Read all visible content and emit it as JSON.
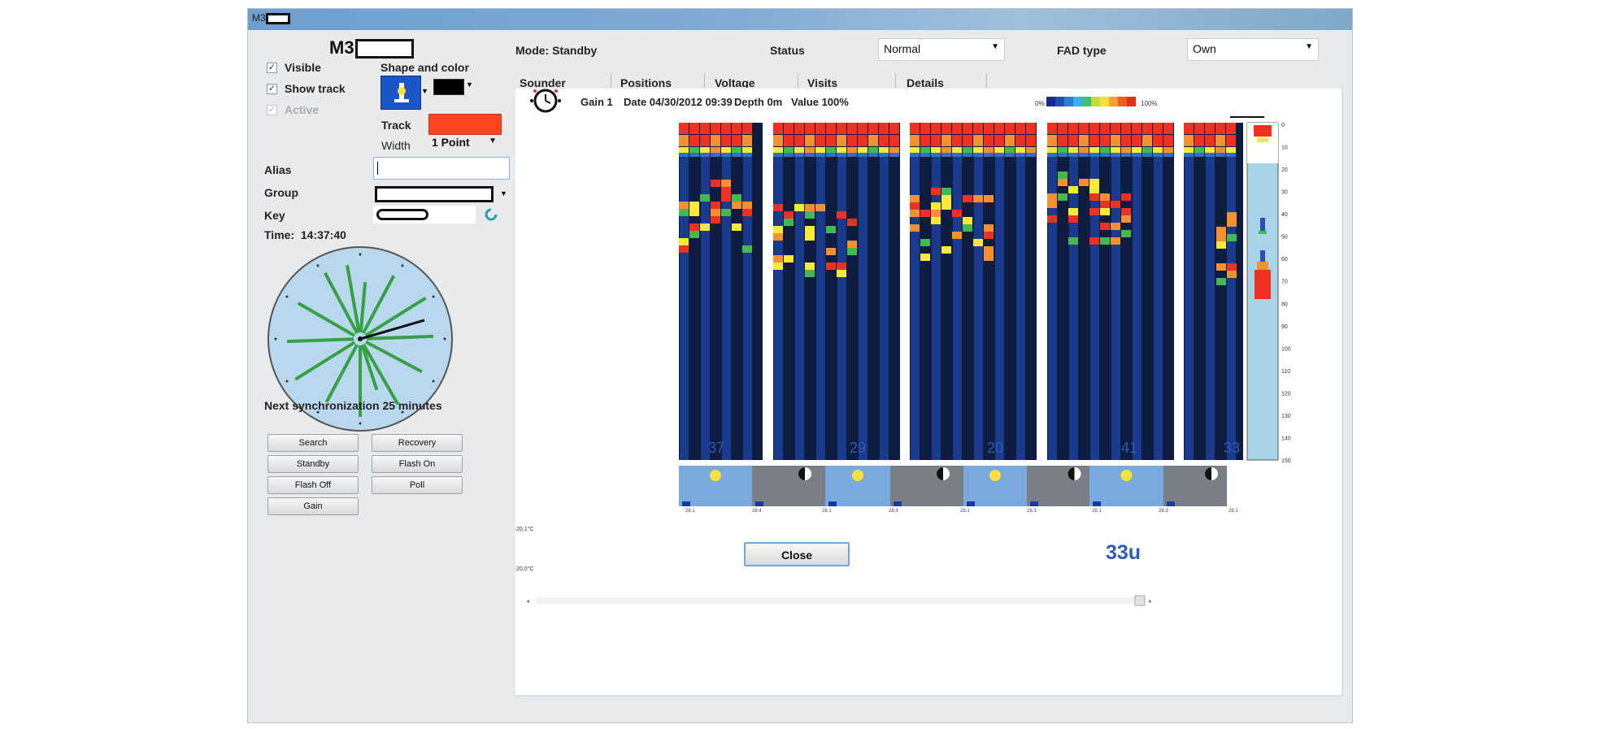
{
  "window": {
    "title_prefix": "M3"
  },
  "device": {
    "name_prefix": "M3"
  },
  "options": {
    "visible_label": "Visible",
    "visible_checked": true,
    "show_track_label": "Show track",
    "show_track_checked": true,
    "active_label": "Active",
    "active_checked": true
  },
  "shape": {
    "title": "Shape and color",
    "icon_bg": "#1a56c8",
    "color_swatch": "#000000"
  },
  "track": {
    "label": "Track",
    "color": "#ff4422",
    "width_label": "Width",
    "width_value": "1 Point"
  },
  "fields": {
    "alias_label": "Alias",
    "alias_value": "",
    "group_label": "Group",
    "key_label": "Key"
  },
  "time": {
    "label": "Time:",
    "value": "14:37:40"
  },
  "sync_text": "Next synchronization 25 minutes",
  "buttons": {
    "search": "Search",
    "recovery": "Recovery",
    "standby": "Standby",
    "flash_on": "Flash On",
    "flash_off": "Flash Off",
    "poll": "Poll",
    "gain": "Gain",
    "close": "Close"
  },
  "header": {
    "mode_label": "Mode:",
    "mode_value": "Standby",
    "status_label": "Status",
    "status_value": "Normal",
    "fad_label": "FAD type",
    "fad_value": "Own"
  },
  "tabs": [
    "Sounder",
    "Positions",
    "Voltage",
    "Visits",
    "Details"
  ],
  "sounder": {
    "gain": "Gain 1",
    "date": "Date 04/30/2012 09:39",
    "depth": "Depth 0m",
    "value": "Value 100%",
    "scale_min": "0%",
    "scale_max": "100%",
    "scale_colors": [
      "#1a2a8a",
      "#1f4fb0",
      "#2c7fd0",
      "#35b0e0",
      "#3fbf7a",
      "#c8d840",
      "#f2e030",
      "#f8a030",
      "#f25a25",
      "#e82c1c"
    ],
    "depth_ticks": [
      "0",
      "10",
      "20",
      "30",
      "40",
      "50",
      "60",
      "70",
      "80",
      "90",
      "100",
      "110",
      "120",
      "130",
      "140",
      "150"
    ],
    "day_counts": [
      "37",
      "29",
      "20",
      "41",
      "33"
    ],
    "current_total": "33u",
    "temp_top": "20,1°C",
    "temp_bottom": "20,0°C",
    "date_ticks": [
      "28.1",
      "28.4",
      "28.1",
      "28.3",
      "28.1",
      "28.3",
      "28.1",
      "28.3",
      "28.1"
    ]
  },
  "colors": {
    "bg_dark": "#0e1c3f",
    "col_blue": "#1a3a8e",
    "red": "#f03020",
    "orange": "#f49030",
    "yellow": "#f8e838",
    "green": "#44b852",
    "sky": "#a7d4e8",
    "clock_face": "#b9d8ee"
  }
}
